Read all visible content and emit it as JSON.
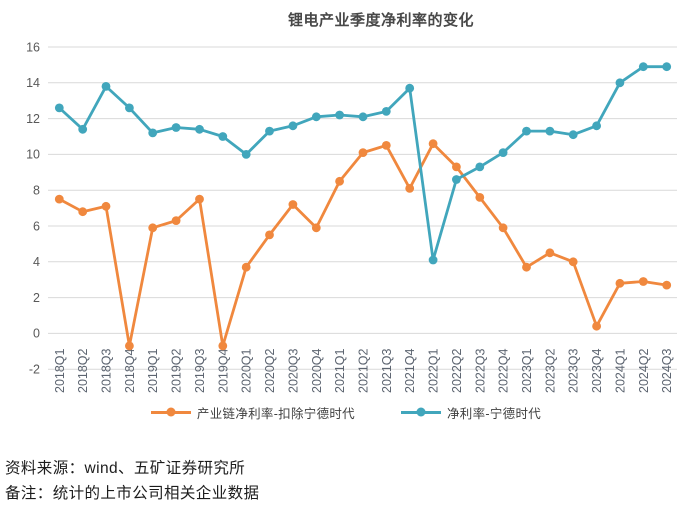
{
  "title": "锂电产业季度净利率的变化",
  "chart_data": {
    "type": "line",
    "categories": [
      "2018Q1",
      "2018Q2",
      "2018Q3",
      "2018Q4",
      "2019Q1",
      "2019Q2",
      "2019Q3",
      "2019Q4",
      "2020Q1",
      "2020Q2",
      "2020Q3",
      "2020Q4",
      "2021Q1",
      "2021Q2",
      "2021Q3",
      "2021Q4",
      "2022Q1",
      "2022Q2",
      "2022Q3",
      "2022Q4",
      "2023Q1",
      "2023Q2",
      "2023Q3",
      "2023Q4",
      "2024Q1",
      "2024Q2",
      "2024Q3"
    ],
    "series": [
      {
        "name": "产业链净利率-扣除宁德时代",
        "color": "#F0883E",
        "values": [
          7.5,
          6.8,
          7.1,
          -0.7,
          5.9,
          6.3,
          7.5,
          -0.7,
          3.7,
          5.5,
          7.2,
          5.9,
          8.5,
          10.1,
          10.5,
          8.1,
          10.6,
          9.3,
          7.6,
          5.9,
          3.7,
          4.5,
          4.0,
          0.4,
          2.8,
          2.9,
          2.7
        ]
      },
      {
        "name": "净利率-宁德时代",
        "color": "#41A6BC",
        "values": [
          12.6,
          11.4,
          13.8,
          12.6,
          11.2,
          11.5,
          11.4,
          11.0,
          10.0,
          11.3,
          11.6,
          12.1,
          12.2,
          12.1,
          12.4,
          13.7,
          4.1,
          8.6,
          9.3,
          10.1,
          11.3,
          11.3,
          11.1,
          11.6,
          14.0,
          14.9,
          14.9
        ]
      }
    ],
    "ylim": [
      -2,
      16
    ],
    "yticks": [
      16,
      14,
      12,
      10,
      8,
      6,
      4,
      2,
      0,
      -2
    ],
    "grid": true,
    "gridline_color": "#D9D9D9",
    "legend_position": "bottom",
    "xlabel": "",
    "ylabel": ""
  },
  "footer": {
    "source": "资料来源：wind、五矿证券研究所",
    "note": "备注：统计的上市公司相关企业数据"
  }
}
